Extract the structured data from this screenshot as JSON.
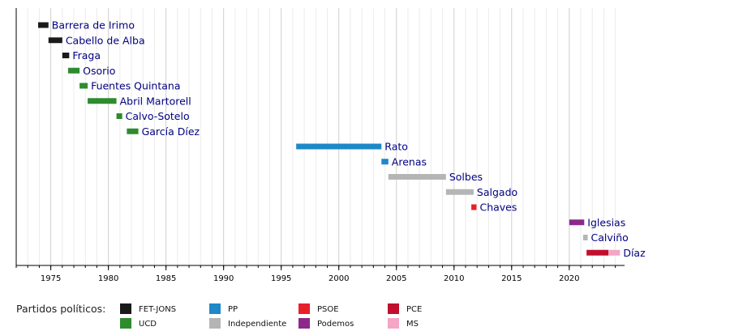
{
  "chart_data": {
    "type": "timeline",
    "xlim": [
      1972.0,
      2024.8
    ],
    "ticks": [
      1975,
      1980,
      1985,
      1990,
      1995,
      2000,
      2005,
      2010,
      2015,
      2020
    ],
    "grid": true,
    "legend_title": "Partidos políticos:",
    "parties": [
      {
        "key": "fet",
        "name": "FET-JONS",
        "color": "#1a1a1a"
      },
      {
        "key": "ucd",
        "name": "UCD",
        "color": "#2e8b2e"
      },
      {
        "key": "pp",
        "name": "PP",
        "color": "#1e88c8"
      },
      {
        "key": "ind",
        "name": "Independiente",
        "color": "#b5b5b5"
      },
      {
        "key": "psoe",
        "name": "PSOE",
        "color": "#e8202a"
      },
      {
        "key": "pod",
        "name": "Podemos",
        "color": "#8b2a8b"
      },
      {
        "key": "pce",
        "name": "PCE",
        "color": "#c0102e"
      },
      {
        "key": "ms",
        "name": "MS",
        "color": "#f4a6c6"
      }
    ],
    "rows": [
      {
        "label": "Barrera de Irimo",
        "segments": [
          {
            "start": 1973.9,
            "end": 1974.8,
            "party": "fet"
          }
        ]
      },
      {
        "label": "Cabello de Alba",
        "segments": [
          {
            "start": 1974.8,
            "end": 1976.0,
            "party": "fet"
          }
        ]
      },
      {
        "label": "Fraga",
        "segments": [
          {
            "start": 1976.0,
            "end": 1976.6,
            "party": "fet"
          }
        ]
      },
      {
        "label": "Osorio",
        "segments": [
          {
            "start": 1976.5,
            "end": 1977.5,
            "party": "ucd"
          }
        ]
      },
      {
        "label": "Fuentes Quintana",
        "segments": [
          {
            "start": 1977.5,
            "end": 1978.2,
            "party": "ucd"
          }
        ]
      },
      {
        "label": "Abril Martorell",
        "segments": [
          {
            "start": 1978.2,
            "end": 1980.7,
            "party": "ucd"
          }
        ]
      },
      {
        "label": "Calvo-Sotelo",
        "segments": [
          {
            "start": 1980.7,
            "end": 1981.2,
            "party": "ucd"
          }
        ]
      },
      {
        "label": "García Díez",
        "segments": [
          {
            "start": 1981.6,
            "end": 1982.6,
            "party": "ucd"
          }
        ]
      },
      {
        "label": "Rato",
        "segments": [
          {
            "start": 1996.3,
            "end": 2003.7,
            "party": "pp"
          }
        ]
      },
      {
        "label": "Arenas",
        "segments": [
          {
            "start": 2003.7,
            "end": 2004.3,
            "party": "pp"
          }
        ]
      },
      {
        "label": "Solbes",
        "segments": [
          {
            "start": 2004.3,
            "end": 2009.3,
            "party": "ind"
          }
        ]
      },
      {
        "label": "Salgado",
        "segments": [
          {
            "start": 2009.3,
            "end": 2011.7,
            "party": "ind"
          }
        ]
      },
      {
        "label": "Chaves",
        "segments": [
          {
            "start": 2011.5,
            "end": 2011.95,
            "party": "psoe"
          }
        ]
      },
      {
        "label": "Iglesias",
        "segments": [
          {
            "start": 2020.0,
            "end": 2021.3,
            "party": "pod"
          }
        ]
      },
      {
        "label": "Calviño",
        "segments": [
          {
            "start": 2021.2,
            "end": 2021.6,
            "party": "ind"
          }
        ]
      },
      {
        "label": "Díaz",
        "segments": [
          {
            "start": 2021.5,
            "end": 2023.4,
            "party": "pce"
          },
          {
            "start": 2023.4,
            "end": 2024.4,
            "party": "ms"
          }
        ]
      }
    ]
  }
}
